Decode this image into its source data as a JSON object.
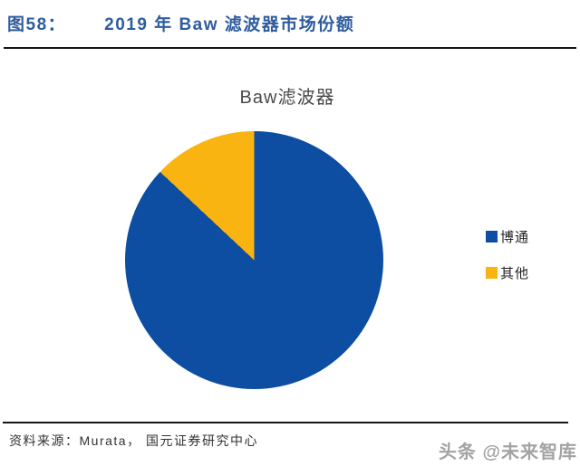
{
  "header": {
    "figure_label": "图58：",
    "figure_title": "2019 年 Baw 滤波器市场份额"
  },
  "chart_data": {
    "type": "pie",
    "title": "Baw滤波器",
    "categories": [
      "博通",
      "其他"
    ],
    "values": [
      87,
      13
    ],
    "unit": "percent-share (estimated from slice angles)",
    "colors": [
      "#0D4EA2",
      "#F9B411"
    ],
    "legend_position": "right",
    "start_angle_deg": 0,
    "direction": "clockwise"
  },
  "footer": {
    "source": "资料来源：Murata，  国元证券研究中心"
  },
  "watermark": {
    "text": "头条 @未来智库"
  },
  "colors": {
    "header_text": "#2E5C9E",
    "divider": "#161616",
    "chart_title_text": "#4A4A4A",
    "legend_text": "#222222",
    "source_text": "#333333",
    "watermark_text": "#A3A3A3"
  }
}
